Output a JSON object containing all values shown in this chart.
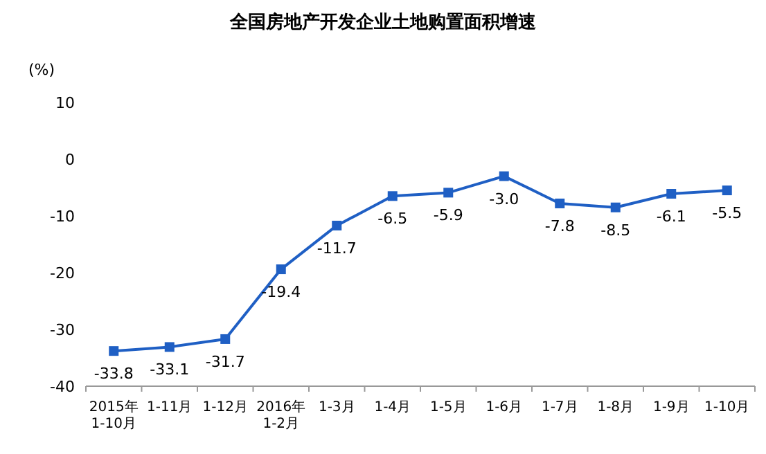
{
  "chart_data": {
    "type": "line",
    "title": "全国房地产开发企业土地购置面积增速",
    "ylabel": "(%)",
    "categories": [
      "2015年\n1-10月",
      "1-11月",
      "1-12月",
      "2016年\n1-2月",
      "1-3月",
      "1-4月",
      "1-5月",
      "1-6月",
      "1-7月",
      "1-8月",
      "1-9月",
      "1-10月"
    ],
    "series": [
      {
        "color": "#1f5fc4",
        "values": [
          -33.8,
          -33.1,
          -31.7,
          -19.4,
          -11.7,
          -6.5,
          -5.9,
          -3.0,
          -7.8,
          -8.5,
          -6.1,
          -5.5
        ],
        "value_labels": [
          "-33.8",
          "-33.1",
          "-31.7",
          "-19.4",
          "-11.7",
          "-6.5",
          "-5.9",
          "-3.0",
          "-7.8",
          "-8.5",
          "-6.1",
          "-5.5"
        ]
      }
    ],
    "ylim": [
      -40,
      10
    ],
    "yticks": [
      -40,
      -30,
      -20,
      -10,
      0,
      10
    ],
    "marker": "square",
    "line_style": "solid",
    "grid": false
  }
}
